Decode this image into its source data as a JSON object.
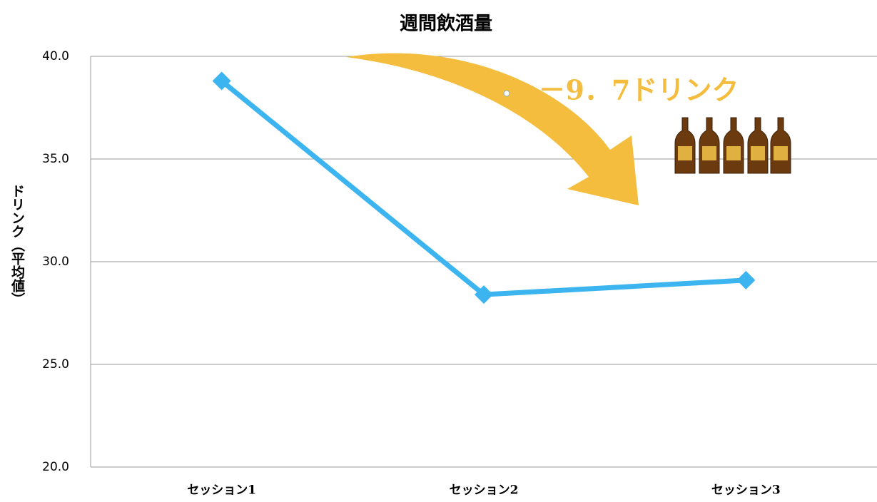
{
  "chart_data": {
    "type": "line",
    "title": "週間飲酒量",
    "y_label": "ドリンク（平均値）",
    "annotation": "－9．7ドリンク",
    "categories": [
      "セッション1",
      "セッション2",
      "セッション3"
    ],
    "series": [
      {
        "name": "週間飲酒量",
        "color": "#3bb4f0",
        "values": [
          38.8,
          28.4,
          29.1
        ]
      }
    ],
    "ylim": [
      20,
      40
    ],
    "yticks": [
      {
        "value": 20,
        "label": "20.0"
      },
      {
        "value": 25,
        "label": "25.0"
      },
      {
        "value": 30,
        "label": "30.0"
      },
      {
        "value": 35,
        "label": "35.0"
      },
      {
        "value": 40,
        "label": "40.0"
      }
    ],
    "grid": true
  }
}
